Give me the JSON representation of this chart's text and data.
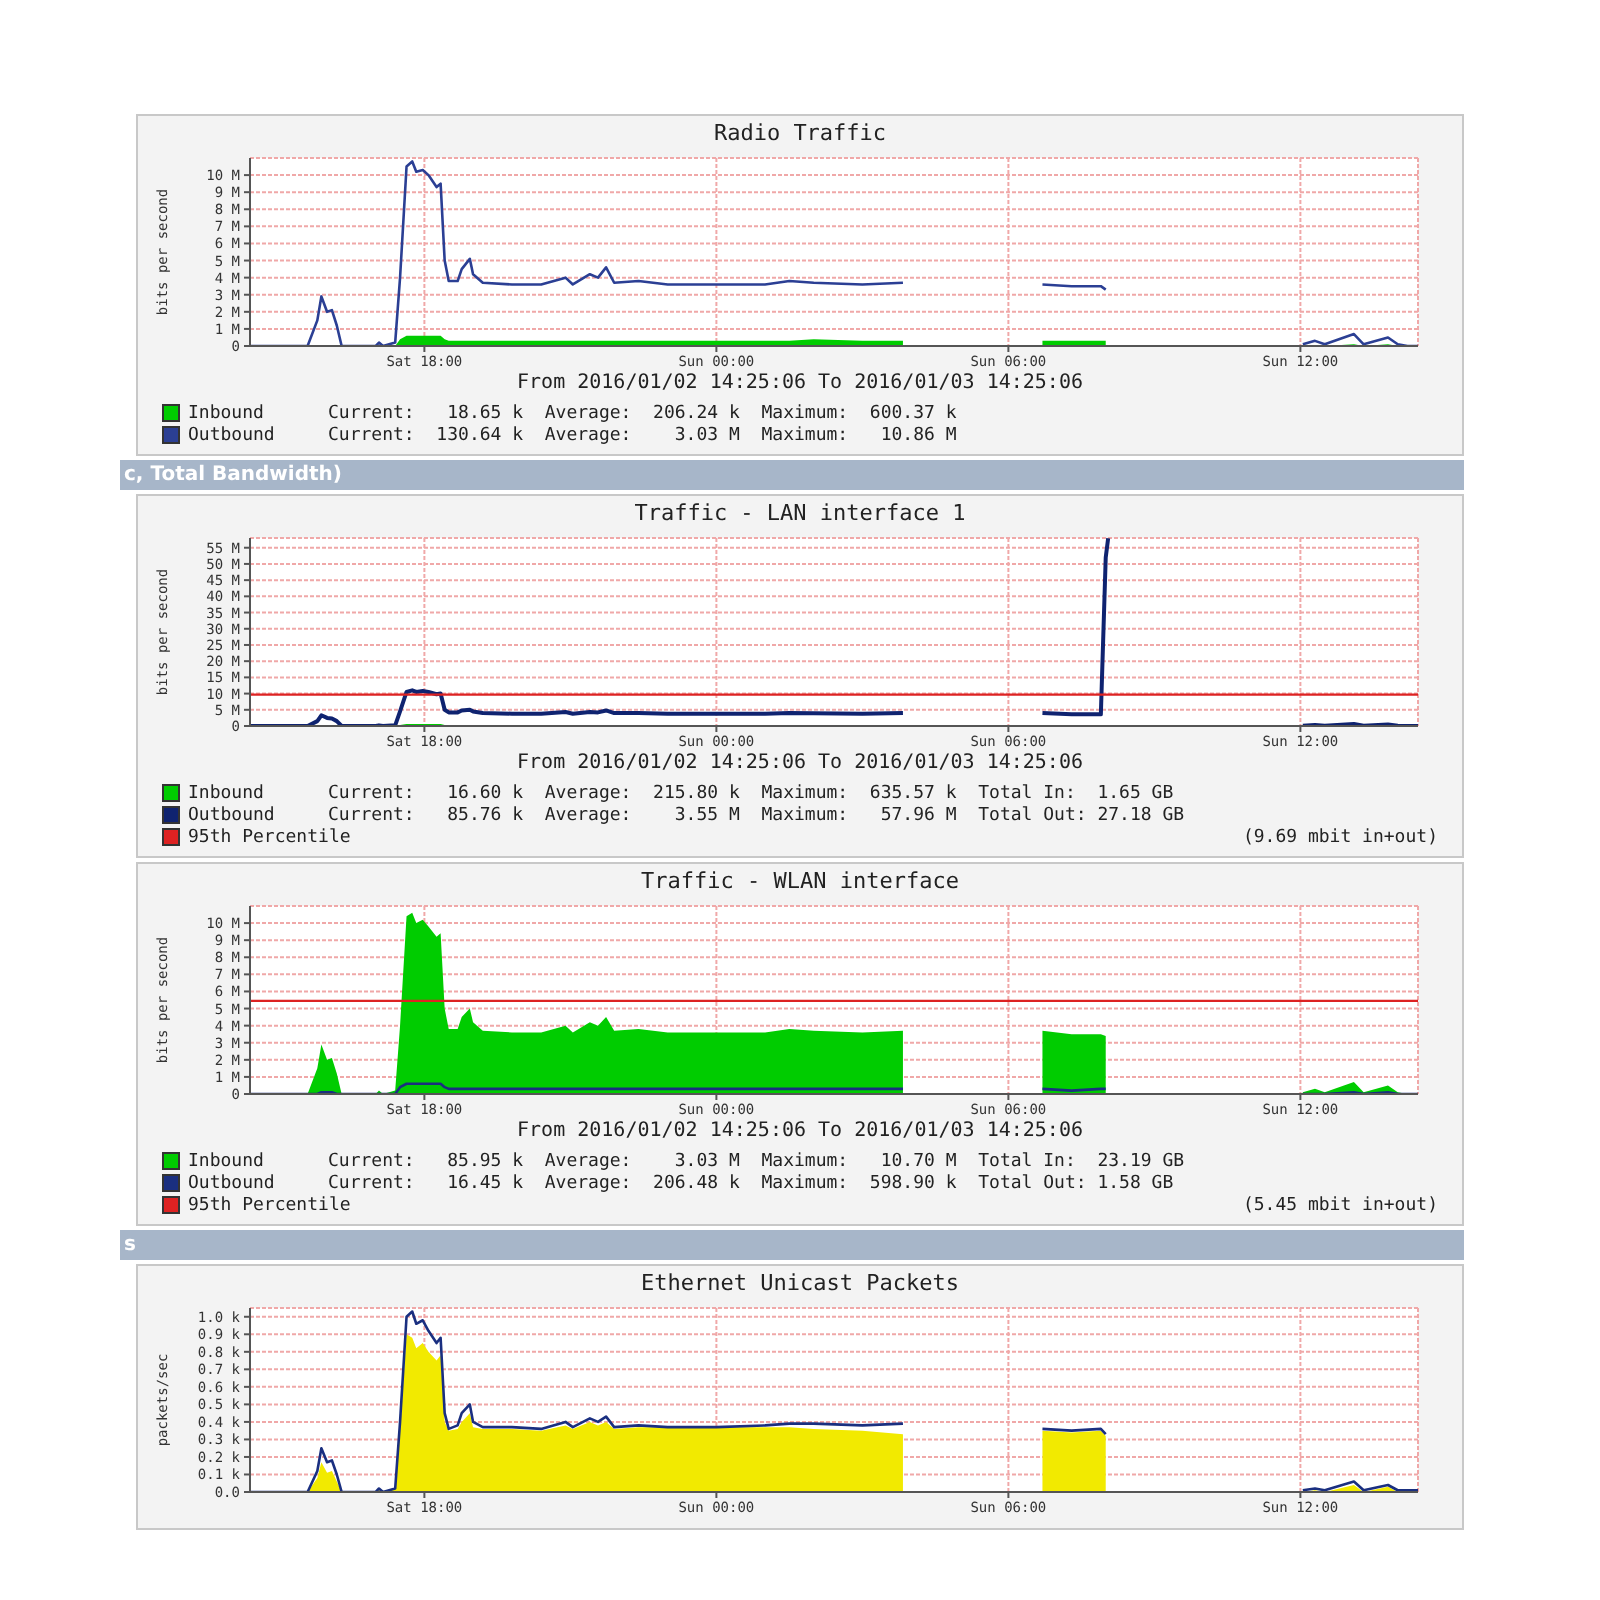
{
  "chart_data": [
    {
      "type": "line",
      "title": "Radio Traffic",
      "xlabel": "From 2016/01/02 14:25:06 To 2016/01/03 14:25:06",
      "ylabel": "bits per second",
      "grid": true,
      "legend": "bottom",
      "xlim": [
        "2016-01-02T14:25",
        "2016-01-03T14:25"
      ],
      "xticks": [
        {
          "value": "2016-01-02T18:00",
          "label": "Sat 18:00"
        },
        {
          "value": "2016-01-03T00:00",
          "label": "Sun 00:00"
        },
        {
          "value": "2016-01-03T06:00",
          "label": "Sun 06:00"
        },
        {
          "value": "2016-01-03T12:00",
          "label": "Sun 12:00"
        }
      ],
      "ylim": [
        0,
        11
      ],
      "yticks": [
        {
          "value": 0,
          "label": "0"
        },
        {
          "value": 1,
          "label": "1 M"
        },
        {
          "value": 2,
          "label": "2 M"
        },
        {
          "value": 3,
          "label": "3 M"
        },
        {
          "value": 4,
          "label": "4 M"
        },
        {
          "value": 5,
          "label": "5 M"
        },
        {
          "value": 6,
          "label": "6 M"
        },
        {
          "value": 7,
          "label": "7 M"
        },
        {
          "value": 8,
          "label": "8 M"
        },
        {
          "value": 9,
          "label": "9 M"
        },
        {
          "value": 10,
          "label": "10 M"
        }
      ],
      "x": [
        "2016-01-02T14:25",
        "2016-01-02T15:36",
        "2016-01-02T15:48",
        "2016-01-02T15:53",
        "2016-01-02T16:00",
        "2016-01-02T16:06",
        "2016-01-02T16:12",
        "2016-01-02T16:18",
        "2016-01-02T17:00",
        "2016-01-02T17:04",
        "2016-01-02T17:09",
        "2016-01-02T17:24",
        "2016-01-02T17:30",
        "2016-01-02T17:38",
        "2016-01-02T17:45",
        "2016-01-02T17:50",
        "2016-01-02T17:58",
        "2016-01-02T18:05",
        "2016-01-02T18:15",
        "2016-01-02T18:20",
        "2016-01-02T18:25",
        "2016-01-02T18:30",
        "2016-01-02T18:41",
        "2016-01-02T18:46",
        "2016-01-02T18:56",
        "2016-01-02T19:00",
        "2016-01-02T19:12",
        "2016-01-02T19:48",
        "2016-01-02T20:24",
        "2016-01-02T20:54",
        "2016-01-02T21:03",
        "2016-01-02T21:24",
        "2016-01-02T21:34",
        "2016-01-02T21:44",
        "2016-01-02T21:54",
        "2016-01-02T22:24",
        "2016-01-02T23:00",
        "2016-01-03T00:00",
        "2016-01-03T01:00",
        "2016-01-03T01:30",
        "2016-01-03T02:00",
        "2016-01-03T03:00",
        "2016-01-03T03:50",
        "2016-01-03T03:54",
        "2016-01-03T06:42",
        "2016-01-03T07:18",
        "2016-01-03T07:54",
        "2016-01-03T08:00",
        "2016-01-03T08:06",
        "2016-01-03T12:03",
        "2016-01-03T12:18",
        "2016-01-03T12:30",
        "2016-01-03T13:06",
        "2016-01-03T13:18",
        "2016-01-03T13:48",
        "2016-01-03T14:00",
        "2016-01-03T14:12",
        "2016-01-03T14:25"
      ],
      "series": [
        {
          "name": "Inbound",
          "type": "area",
          "color": "#00cc00",
          "values": [
            0,
            0,
            0,
            0,
            0,
            0,
            0,
            0,
            0,
            0,
            0,
            0,
            0.4,
            0.6,
            0.6,
            0.6,
            0.6,
            0.6,
            0.6,
            0.6,
            0.4,
            0.3,
            0.3,
            0.3,
            0.3,
            0.3,
            0.3,
            0.3,
            0.3,
            0.3,
            0.3,
            0.3,
            0.3,
            0.3,
            0.3,
            0.3,
            0.3,
            0.3,
            0.3,
            0.3,
            0.4,
            0.3,
            0.3,
            null,
            0.3,
            0.3,
            0.3,
            0.3,
            null,
            0,
            0,
            0,
            0.1,
            0,
            0.1,
            0,
            0,
            0
          ]
        },
        {
          "name": "Outbound",
          "type": "line",
          "color": "#2b3f94",
          "values": [
            0,
            0,
            1.5,
            2.9,
            2.0,
            2.1,
            1.2,
            0,
            0,
            0.2,
            0,
            0.2,
            4.0,
            10.5,
            10.8,
            10.2,
            10.3,
            10.0,
            9.3,
            9.5,
            5.0,
            3.8,
            3.8,
            4.5,
            5.1,
            4.2,
            3.7,
            3.6,
            3.6,
            4.0,
            3.6,
            4.2,
            4.0,
            4.6,
            3.7,
            3.8,
            3.6,
            3.6,
            3.6,
            3.8,
            3.7,
            3.6,
            3.7,
            null,
            3.6,
            3.5,
            3.5,
            3.3,
            null,
            0.1,
            0.3,
            0.1,
            0.7,
            0.1,
            0.5,
            0.1,
            0,
            0
          ]
        }
      ],
      "annotations": [
        "Current:   18.65 k  Average:  206.24 k  Maximum:  600.37 k",
        "Current:  130.64 k  Average:    3.03 M  Maximum:   10.86 M"
      ]
    },
    {
      "type": "other",
      "annotations": [
        "c, Total Bandwidth)"
      ]
    },
    {
      "type": "line",
      "title": "Traffic - LAN interface 1",
      "xlabel": "From 2016/01/02 14:25:06 To 2016/01/03 14:25:06",
      "ylabel": "bits per second",
      "grid": true,
      "legend": "bottom",
      "xlim": [
        "2016-01-02T14:25",
        "2016-01-03T14:25"
      ],
      "xticks": [
        {
          "value": "2016-01-02T18:00",
          "label": "Sat 18:00"
        },
        {
          "value": "2016-01-03T00:00",
          "label": "Sun 00:00"
        },
        {
          "value": "2016-01-03T06:00",
          "label": "Sun 06:00"
        },
        {
          "value": "2016-01-03T12:00",
          "label": "Sun 12:00"
        }
      ],
      "ylim": [
        0,
        58
      ],
      "yticks": [
        {
          "value": 0,
          "label": "0"
        },
        {
          "value": 5,
          "label": "5 M"
        },
        {
          "value": 10,
          "label": "10 M"
        },
        {
          "value": 15,
          "label": "15 M"
        },
        {
          "value": 20,
          "label": "20 M"
        },
        {
          "value": 25,
          "label": "25 M"
        },
        {
          "value": 30,
          "label": "30 M"
        },
        {
          "value": 35,
          "label": "35 M"
        },
        {
          "value": 40,
          "label": "40 M"
        },
        {
          "value": 45,
          "label": "45 M"
        },
        {
          "value": 50,
          "label": "50 M"
        },
        {
          "value": 55,
          "label": "55 M"
        }
      ],
      "x": [
        "2016-01-02T14:25",
        "2016-01-02T15:36",
        "2016-01-02T15:48",
        "2016-01-02T15:53",
        "2016-01-02T16:00",
        "2016-01-02T16:06",
        "2016-01-02T16:12",
        "2016-01-02T16:18",
        "2016-01-02T17:00",
        "2016-01-02T17:04",
        "2016-01-02T17:09",
        "2016-01-02T17:24",
        "2016-01-02T17:30",
        "2016-01-02T17:38",
        "2016-01-02T17:45",
        "2016-01-02T17:50",
        "2016-01-02T17:58",
        "2016-01-02T18:05",
        "2016-01-02T18:15",
        "2016-01-02T18:20",
        "2016-01-02T18:25",
        "2016-01-02T18:30",
        "2016-01-02T18:41",
        "2016-01-02T18:46",
        "2016-01-02T18:56",
        "2016-01-02T19:00",
        "2016-01-02T19:12",
        "2016-01-02T19:48",
        "2016-01-02T20:24",
        "2016-01-02T20:54",
        "2016-01-02T21:03",
        "2016-01-02T21:24",
        "2016-01-02T21:34",
        "2016-01-02T21:44",
        "2016-01-02T21:54",
        "2016-01-02T22:24",
        "2016-01-02T23:00",
        "2016-01-03T00:00",
        "2016-01-03T01:00",
        "2016-01-03T01:30",
        "2016-01-03T02:00",
        "2016-01-03T03:00",
        "2016-01-03T03:50",
        "2016-01-03T03:54",
        "2016-01-03T06:42",
        "2016-01-03T07:18",
        "2016-01-03T07:54",
        "2016-01-03T08:00",
        "2016-01-03T08:03",
        "2016-01-03T08:06",
        "2016-01-03T12:03",
        "2016-01-03T12:18",
        "2016-01-03T12:30",
        "2016-01-03T13:06",
        "2016-01-03T13:18",
        "2016-01-03T13:48",
        "2016-01-03T14:00",
        "2016-01-03T14:12",
        "2016-01-03T14:25"
      ],
      "series": [
        {
          "name": "Inbound",
          "type": "area",
          "color": "#00cc00",
          "values": [
            0,
            0,
            0,
            0,
            0,
            0,
            0,
            0,
            0,
            0,
            0,
            0,
            0.3,
            0.6,
            0.6,
            0.6,
            0.6,
            0.6,
            0.6,
            0.6,
            0.3,
            0.3,
            0.3,
            0.3,
            0.3,
            0.3,
            0.3,
            0.3,
            0.3,
            0.3,
            0.3,
            0.3,
            0.3,
            0.3,
            0.3,
            0.3,
            0.3,
            0.3,
            0.3,
            0.3,
            0.3,
            0.3,
            0.3,
            null,
            0.3,
            0.3,
            0.3,
            0.3,
            0.3,
            null,
            null,
            null,
            null,
            null,
            null,
            null,
            null,
            null,
            null
          ]
        },
        {
          "name": "Outbound",
          "type": "line",
          "color": "#0f2370",
          "values": [
            0,
            0,
            1.5,
            3.3,
            2.5,
            2.3,
            1.5,
            0,
            0,
            0.2,
            0,
            0.2,
            4.5,
            10.5,
            11.0,
            10.5,
            10.8,
            10.5,
            9.8,
            10.0,
            5.0,
            4.2,
            4.2,
            4.8,
            5.0,
            4.5,
            4.0,
            3.8,
            3.8,
            4.3,
            3.8,
            4.3,
            4.2,
            4.8,
            4.0,
            4.0,
            3.8,
            3.8,
            3.8,
            4.0,
            3.9,
            3.8,
            4.0,
            null,
            4.0,
            3.6,
            3.6,
            52,
            57.9,
            null,
            0.1,
            0.3,
            0.1,
            0.6,
            0.1,
            0.5,
            0.1,
            0,
            0
          ]
        }
      ],
      "ref_lines": [
        {
          "axis": "y",
          "value": 9.69,
          "label": "95th Percentile",
          "color": "#dd2222"
        }
      ],
      "annotations": [
        "Current:   16.60 k  Average:  215.80 k  Maximum:  635.57 k  Total In:  1.65 GB",
        "Current:   85.76 k  Average:    3.55 M  Maximum:   57.96 M  Total Out: 27.18 GB",
        "(9.69 mbit in+out)"
      ]
    },
    {
      "type": "line",
      "title": "Traffic - WLAN interface",
      "xlabel": "From 2016/01/02 14:25:06 To 2016/01/03 14:25:06",
      "ylabel": "bits per second",
      "grid": true,
      "legend": "bottom",
      "xlim": [
        "2016-01-02T14:25",
        "2016-01-03T14:25"
      ],
      "xticks": [
        {
          "value": "2016-01-02T18:00",
          "label": "Sat 18:00"
        },
        {
          "value": "2016-01-03T00:00",
          "label": "Sun 00:00"
        },
        {
          "value": "2016-01-03T06:00",
          "label": "Sun 06:00"
        },
        {
          "value": "2016-01-03T12:00",
          "label": "Sun 12:00"
        }
      ],
      "ylim": [
        0,
        11
      ],
      "yticks": [
        {
          "value": 0,
          "label": "0"
        },
        {
          "value": 1,
          "label": "1 M"
        },
        {
          "value": 2,
          "label": "2 M"
        },
        {
          "value": 3,
          "label": "3 M"
        },
        {
          "value": 4,
          "label": "4 M"
        },
        {
          "value": 5,
          "label": "5 M"
        },
        {
          "value": 6,
          "label": "6 M"
        },
        {
          "value": 7,
          "label": "7 M"
        },
        {
          "value": 8,
          "label": "8 M"
        },
        {
          "value": 9,
          "label": "9 M"
        },
        {
          "value": 10,
          "label": "10 M"
        }
      ],
      "x": [
        "2016-01-02T14:25",
        "2016-01-02T15:36",
        "2016-01-02T15:48",
        "2016-01-02T15:53",
        "2016-01-02T16:00",
        "2016-01-02T16:06",
        "2016-01-02T16:12",
        "2016-01-02T16:18",
        "2016-01-02T17:00",
        "2016-01-02T17:04",
        "2016-01-02T17:09",
        "2016-01-02T17:24",
        "2016-01-02T17:30",
        "2016-01-02T17:38",
        "2016-01-02T17:45",
        "2016-01-02T17:50",
        "2016-01-02T17:58",
        "2016-01-02T18:05",
        "2016-01-02T18:15",
        "2016-01-02T18:20",
        "2016-01-02T18:25",
        "2016-01-02T18:30",
        "2016-01-02T18:41",
        "2016-01-02T18:46",
        "2016-01-02T18:56",
        "2016-01-02T19:00",
        "2016-01-02T19:12",
        "2016-01-02T19:48",
        "2016-01-02T20:24",
        "2016-01-02T20:54",
        "2016-01-02T21:03",
        "2016-01-02T21:24",
        "2016-01-02T21:34",
        "2016-01-02T21:44",
        "2016-01-02T21:54",
        "2016-01-02T22:24",
        "2016-01-02T23:00",
        "2016-01-03T00:00",
        "2016-01-03T01:00",
        "2016-01-03T01:30",
        "2016-01-03T02:00",
        "2016-01-03T03:00",
        "2016-01-03T03:50",
        "2016-01-03T03:54",
        "2016-01-03T06:42",
        "2016-01-03T07:18",
        "2016-01-03T07:54",
        "2016-01-03T08:00",
        "2016-01-03T08:06",
        "2016-01-03T12:03",
        "2016-01-03T12:18",
        "2016-01-03T12:30",
        "2016-01-03T13:06",
        "2016-01-03T13:18",
        "2016-01-03T13:48",
        "2016-01-03T14:00",
        "2016-01-03T14:12",
        "2016-01-03T14:25"
      ],
      "series": [
        {
          "name": "Inbound",
          "type": "area",
          "color": "#00cc00",
          "values": [
            0,
            0,
            1.5,
            2.9,
            2.0,
            2.1,
            1.2,
            0,
            0,
            0.2,
            0,
            0.2,
            4.0,
            10.4,
            10.6,
            10.0,
            10.2,
            9.8,
            9.2,
            9.4,
            5.0,
            3.8,
            3.8,
            4.5,
            5.0,
            4.2,
            3.7,
            3.6,
            3.6,
            4.0,
            3.6,
            4.2,
            4.0,
            4.5,
            3.7,
            3.8,
            3.6,
            3.6,
            3.6,
            3.8,
            3.7,
            3.6,
            3.7,
            null,
            3.7,
            3.5,
            3.5,
            3.4,
            null,
            0.1,
            0.3,
            0.1,
            0.7,
            0.1,
            0.5,
            0.1,
            0,
            0
          ]
        },
        {
          "name": "Outbound",
          "type": "line",
          "color": "#1a2f80",
          "values": [
            0,
            0,
            0,
            0.1,
            0.1,
            0.1,
            0,
            0,
            0,
            0,
            0,
            0,
            0.4,
            0.6,
            0.6,
            0.6,
            0.6,
            0.6,
            0.6,
            0.6,
            0.4,
            0.3,
            0.3,
            0.3,
            0.3,
            0.3,
            0.3,
            0.3,
            0.3,
            0.3,
            0.3,
            0.3,
            0.3,
            0.3,
            0.3,
            0.3,
            0.3,
            0.3,
            0.3,
            0.3,
            0.3,
            0.3,
            0.3,
            null,
            0.3,
            0.2,
            0.3,
            0.3,
            null,
            0,
            0,
            0,
            0.1,
            0,
            0.1,
            0,
            0,
            0
          ]
        }
      ],
      "ref_lines": [
        {
          "axis": "y",
          "value": 5.45,
          "label": "95th Percentile",
          "color": "#dd2222"
        }
      ],
      "annotations": [
        "Current:   85.95 k  Average:    3.03 M  Maximum:   10.70 M  Total In:  23.19 GB",
        "Current:   16.45 k  Average:  206.48 k  Maximum:  598.90 k  Total Out: 1.58 GB",
        "(5.45 mbit in+out)"
      ]
    },
    {
      "type": "other",
      "annotations": [
        "s"
      ]
    },
    {
      "type": "area",
      "title": "Ethernet Unicast Packets",
      "ylabel": "packets/sec",
      "grid": true,
      "xlim": [
        "2016-01-02T14:25",
        "2016-01-03T14:25"
      ],
      "xticks": [
        {
          "value": "2016-01-02T18:00",
          "label": "Sat 18:00"
        },
        {
          "value": "2016-01-03T00:00",
          "label": "Sun 00:00"
        },
        {
          "value": "2016-01-03T06:00",
          "label": "Sun 06:00"
        },
        {
          "value": "2016-01-03T12:00",
          "label": "Sun 12:00"
        }
      ],
      "ylim": [
        0,
        1.05
      ],
      "yticks": [
        {
          "value": 0,
          "label": "0.0"
        },
        {
          "value": 0.1,
          "label": "0.1 k"
        },
        {
          "value": 0.2,
          "label": "0.2 k"
        },
        {
          "value": 0.3,
          "label": "0.3 k"
        },
        {
          "value": 0.4,
          "label": "0.4 k"
        },
        {
          "value": 0.5,
          "label": "0.5 k"
        },
        {
          "value": 0.6,
          "label": "0.6 k"
        },
        {
          "value": 0.7,
          "label": "0.7 k"
        },
        {
          "value": 0.8,
          "label": "0.8 k"
        },
        {
          "value": 0.9,
          "label": "0.9 k"
        },
        {
          "value": 1.0,
          "label": "1.0 k"
        }
      ],
      "x": [
        "2016-01-02T14:25",
        "2016-01-02T15:36",
        "2016-01-02T15:48",
        "2016-01-02T15:53",
        "2016-01-02T16:00",
        "2016-01-02T16:06",
        "2016-01-02T16:12",
        "2016-01-02T16:18",
        "2016-01-02T17:00",
        "2016-01-02T17:04",
        "2016-01-02T17:09",
        "2016-01-02T17:24",
        "2016-01-02T17:30",
        "2016-01-02T17:38",
        "2016-01-02T17:45",
        "2016-01-02T17:50",
        "2016-01-02T17:58",
        "2016-01-02T18:05",
        "2016-01-02T18:15",
        "2016-01-02T18:20",
        "2016-01-02T18:25",
        "2016-01-02T18:30",
        "2016-01-02T18:41",
        "2016-01-02T18:46",
        "2016-01-02T18:56",
        "2016-01-02T19:00",
        "2016-01-02T19:12",
        "2016-01-02T19:48",
        "2016-01-02T20:24",
        "2016-01-02T20:54",
        "2016-01-02T21:03",
        "2016-01-02T21:24",
        "2016-01-02T21:34",
        "2016-01-02T21:44",
        "2016-01-02T21:54",
        "2016-01-02T22:24",
        "2016-01-02T23:00",
        "2016-01-03T00:00",
        "2016-01-03T01:00",
        "2016-01-03T01:30",
        "2016-01-03T02:00",
        "2016-01-03T03:00",
        "2016-01-03T03:50",
        "2016-01-03T03:54",
        "2016-01-03T06:42",
        "2016-01-03T07:18",
        "2016-01-03T07:54",
        "2016-01-03T08:00",
        "2016-01-03T08:06",
        "2016-01-03T12:03",
        "2016-01-03T12:18",
        "2016-01-03T12:30",
        "2016-01-03T13:06",
        "2016-01-03T13:18",
        "2016-01-03T13:48",
        "2016-01-03T14:00",
        "2016-01-03T14:12",
        "2016-01-03T14:25"
      ],
      "series": [
        {
          "color": "#f2ea00",
          "values": [
            0,
            0,
            0.08,
            0.17,
            0.11,
            0.12,
            0.06,
            0,
            0,
            0.02,
            0,
            0.02,
            0.35,
            0.9,
            0.88,
            0.82,
            0.85,
            0.8,
            0.75,
            0.78,
            0.4,
            0.35,
            0.36,
            0.4,
            0.45,
            0.37,
            0.36,
            0.36,
            0.35,
            0.38,
            0.36,
            0.4,
            0.38,
            0.4,
            0.36,
            0.37,
            0.37,
            0.37,
            0.37,
            0.37,
            0.36,
            0.35,
            0.33,
            null,
            0.35,
            0.34,
            0.35,
            0.32,
            null,
            0,
            0.01,
            0,
            0.04,
            0,
            0.03,
            0,
            0,
            0
          ]
        },
        {
          "type": "line",
          "color": "#1a2f80",
          "values": [
            0,
            0,
            0.12,
            0.25,
            0.17,
            0.18,
            0.1,
            0,
            0,
            0.02,
            0,
            0.02,
            0.4,
            1.0,
            1.03,
            0.96,
            0.98,
            0.92,
            0.85,
            0.88,
            0.45,
            0.36,
            0.38,
            0.45,
            0.5,
            0.4,
            0.37,
            0.37,
            0.36,
            0.4,
            0.37,
            0.42,
            0.4,
            0.43,
            0.37,
            0.38,
            0.37,
            0.37,
            0.38,
            0.39,
            0.39,
            0.38,
            0.39,
            null,
            0.36,
            0.35,
            0.36,
            0.33,
            null,
            0.01,
            0.02,
            0.01,
            0.06,
            0.01,
            0.04,
            0.01,
            0.01,
            0.01
          ]
        }
      ]
    }
  ]
}
